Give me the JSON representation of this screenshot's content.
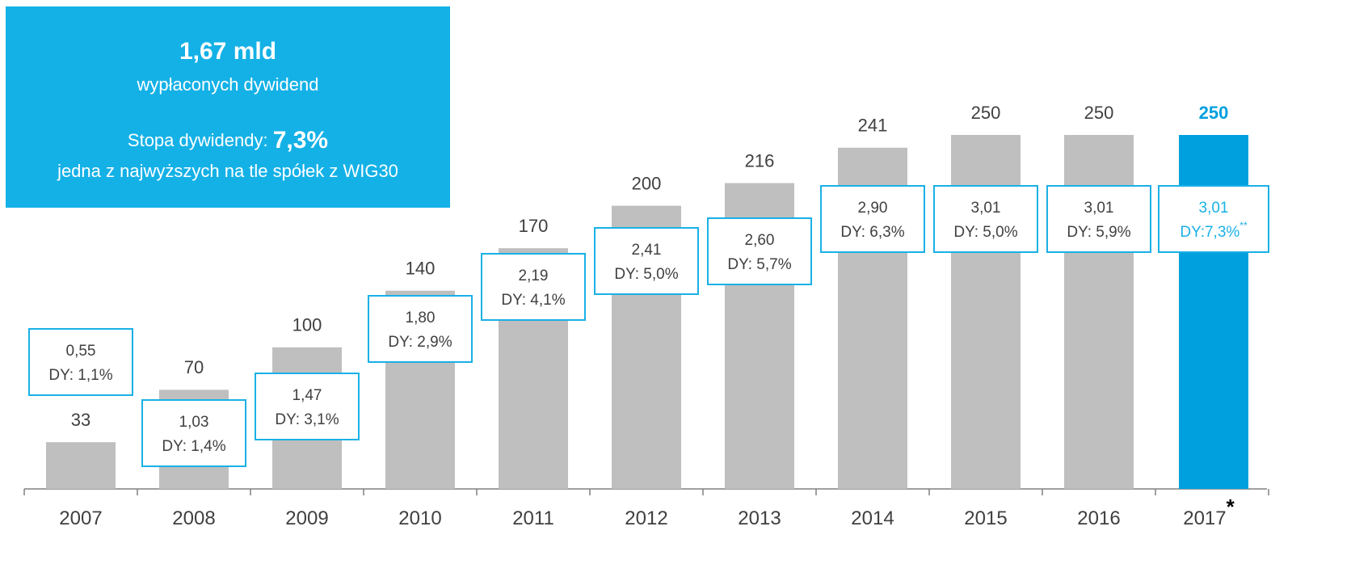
{
  "chart_data": {
    "type": "bar",
    "info_box": {
      "amount": "1,67 mld",
      "amount_caption": "wypłaconych dywidend",
      "yield_label": "Stopa dywidendy: ",
      "yield_value": "7,3%",
      "yield_caption": "jedna z najwyższych na tle spółek z WIG30"
    },
    "categories": [
      "2007",
      "2008",
      "2009",
      "2010",
      "2011",
      "2012",
      "2013",
      "2014",
      "2015",
      "2016",
      "2017"
    ],
    "category_marker": "*",
    "values": [
      33,
      70,
      100,
      140,
      170,
      200,
      216,
      241,
      250,
      250,
      250
    ],
    "colors": [
      "#bfbfbf",
      "#bfbfbf",
      "#bfbfbf",
      "#bfbfbf",
      "#bfbfbf",
      "#bfbfbf",
      "#bfbfbf",
      "#bfbfbf",
      "#bfbfbf",
      "#bfbfbf",
      "#00a0df"
    ],
    "dps": {
      "values": [
        0.55,
        1.03,
        1.47,
        1.8,
        2.19,
        2.41,
        2.6,
        2.9,
        3.01,
        3.01,
        3.01
      ],
      "value_labels": [
        "0,55",
        "1,03",
        "1,47",
        "1,80",
        "2,19",
        "2,41",
        "2,60",
        "2,90",
        "3,01",
        "3,01",
        "3,01"
      ]
    },
    "dy": {
      "values": [
        1.1,
        1.4,
        3.1,
        2.9,
        4.1,
        5.0,
        5.7,
        6.3,
        5.0,
        5.9,
        7.3
      ],
      "value_labels": [
        "DY: 1,1%",
        "DY: 1,4%",
        "DY: 3,1%",
        "DY: 2,9%",
        "DY: 4,1%",
        "DY: 5,0%",
        "DY: 5,7%",
        "DY: 6,3%",
        "DY: 5,0%",
        "DY: 5,9%",
        "DY:7,3%"
      ]
    },
    "dy_marker": "**",
    "box_color": "#1ab0e6",
    "ylim": [
      0,
      250
    ]
  }
}
